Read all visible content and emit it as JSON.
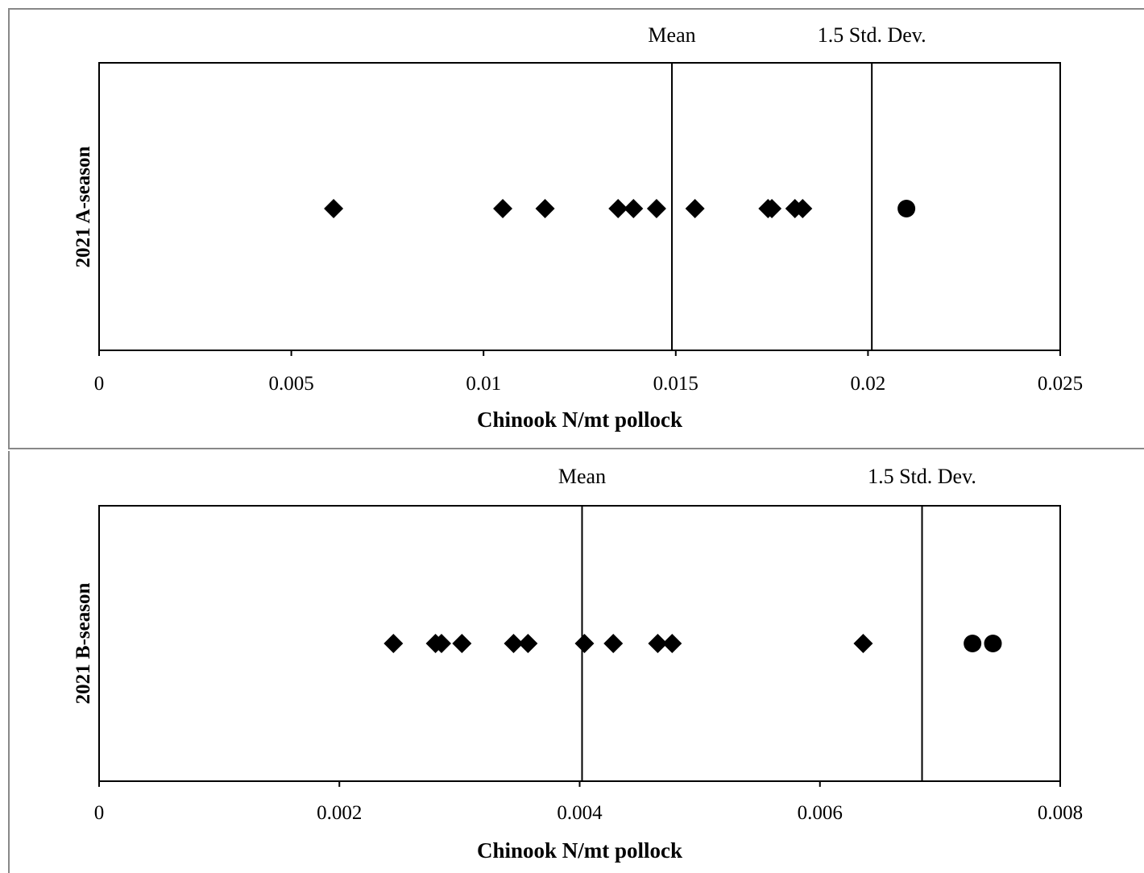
{
  "chart_data": [
    {
      "type": "scatter",
      "ylabel": "2021 A-season",
      "xlabel": "Chinook  N/mt pollock",
      "xlim": [
        0,
        0.025
      ],
      "x_ticks": [
        0,
        0.005,
        0.01,
        0.015,
        0.02,
        0.025
      ],
      "x_tick_labels": [
        "0",
        "0.005",
        "0.01",
        "0.015",
        "0.02",
        "0.025"
      ],
      "grid": false,
      "reference_lines": [
        {
          "label": "Mean",
          "x": 0.0149
        },
        {
          "label": "1.5 Std. Dev.",
          "x": 0.0201
        }
      ],
      "series": [
        {
          "marker": "diamond",
          "x": [
            0.0061,
            0.0105,
            0.0116,
            0.0135,
            0.0139,
            0.0145,
            0.0155,
            0.0174,
            0.0175,
            0.0181,
            0.0183
          ]
        },
        {
          "marker": "circle",
          "x": [
            0.021
          ]
        }
      ]
    },
    {
      "type": "scatter",
      "ylabel": "2021 B-season",
      "xlabel": "Chinook  N/mt pollock",
      "xlim": [
        0,
        0.008
      ],
      "x_ticks": [
        0,
        0.002,
        0.004,
        0.006,
        0.008
      ],
      "x_tick_labels": [
        "0",
        "0.002",
        "0.004",
        "0.006",
        "0.008"
      ],
      "grid": false,
      "reference_lines": [
        {
          "label": "Mean",
          "x": 0.00402
        },
        {
          "label": "1.5 Std. Dev.",
          "x": 0.00685
        }
      ],
      "series": [
        {
          "marker": "diamond",
          "x": [
            0.00245,
            0.0028,
            0.00285,
            0.00302,
            0.00345,
            0.00357,
            0.00404,
            0.00428,
            0.00465,
            0.00477,
            0.00636
          ]
        },
        {
          "marker": "circle",
          "x": [
            0.00727,
            0.00744
          ]
        }
      ]
    }
  ]
}
